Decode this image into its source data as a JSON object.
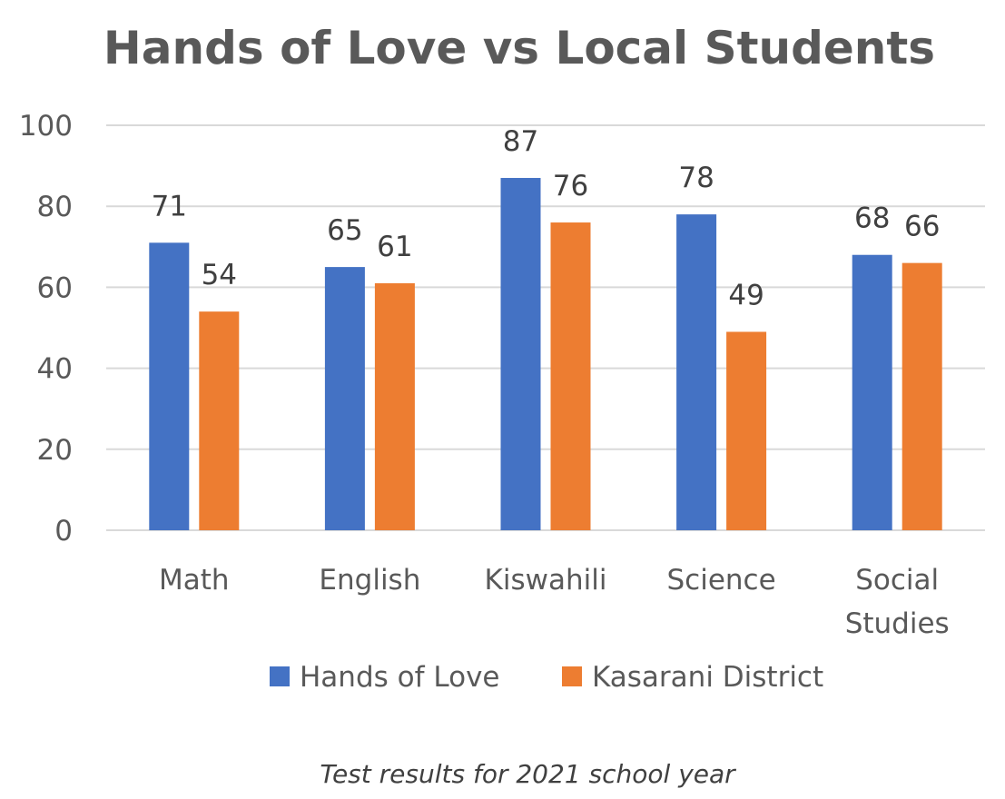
{
  "chart_data": {
    "type": "bar",
    "title": "Hands of Love vs Local Students",
    "caption": "Test results for 2021 school year",
    "categories": [
      [
        "Math"
      ],
      [
        "English"
      ],
      [
        "Kiswahili"
      ],
      [
        "Science"
      ],
      [
        "Social",
        "Studies"
      ]
    ],
    "series": [
      {
        "name": "Hands of Love",
        "color": "#4472c4",
        "values": [
          71,
          65,
          87,
          78,
          68
        ]
      },
      {
        "name": "Kasarani District",
        "color": "#ed7d31",
        "values": [
          54,
          61,
          76,
          49,
          66
        ]
      }
    ],
    "yticks": [
      "0",
      "20",
      "40",
      "60",
      "80",
      "100"
    ],
    "ylim": [
      0,
      100
    ],
    "grid": true,
    "legend_position": "bottom"
  }
}
